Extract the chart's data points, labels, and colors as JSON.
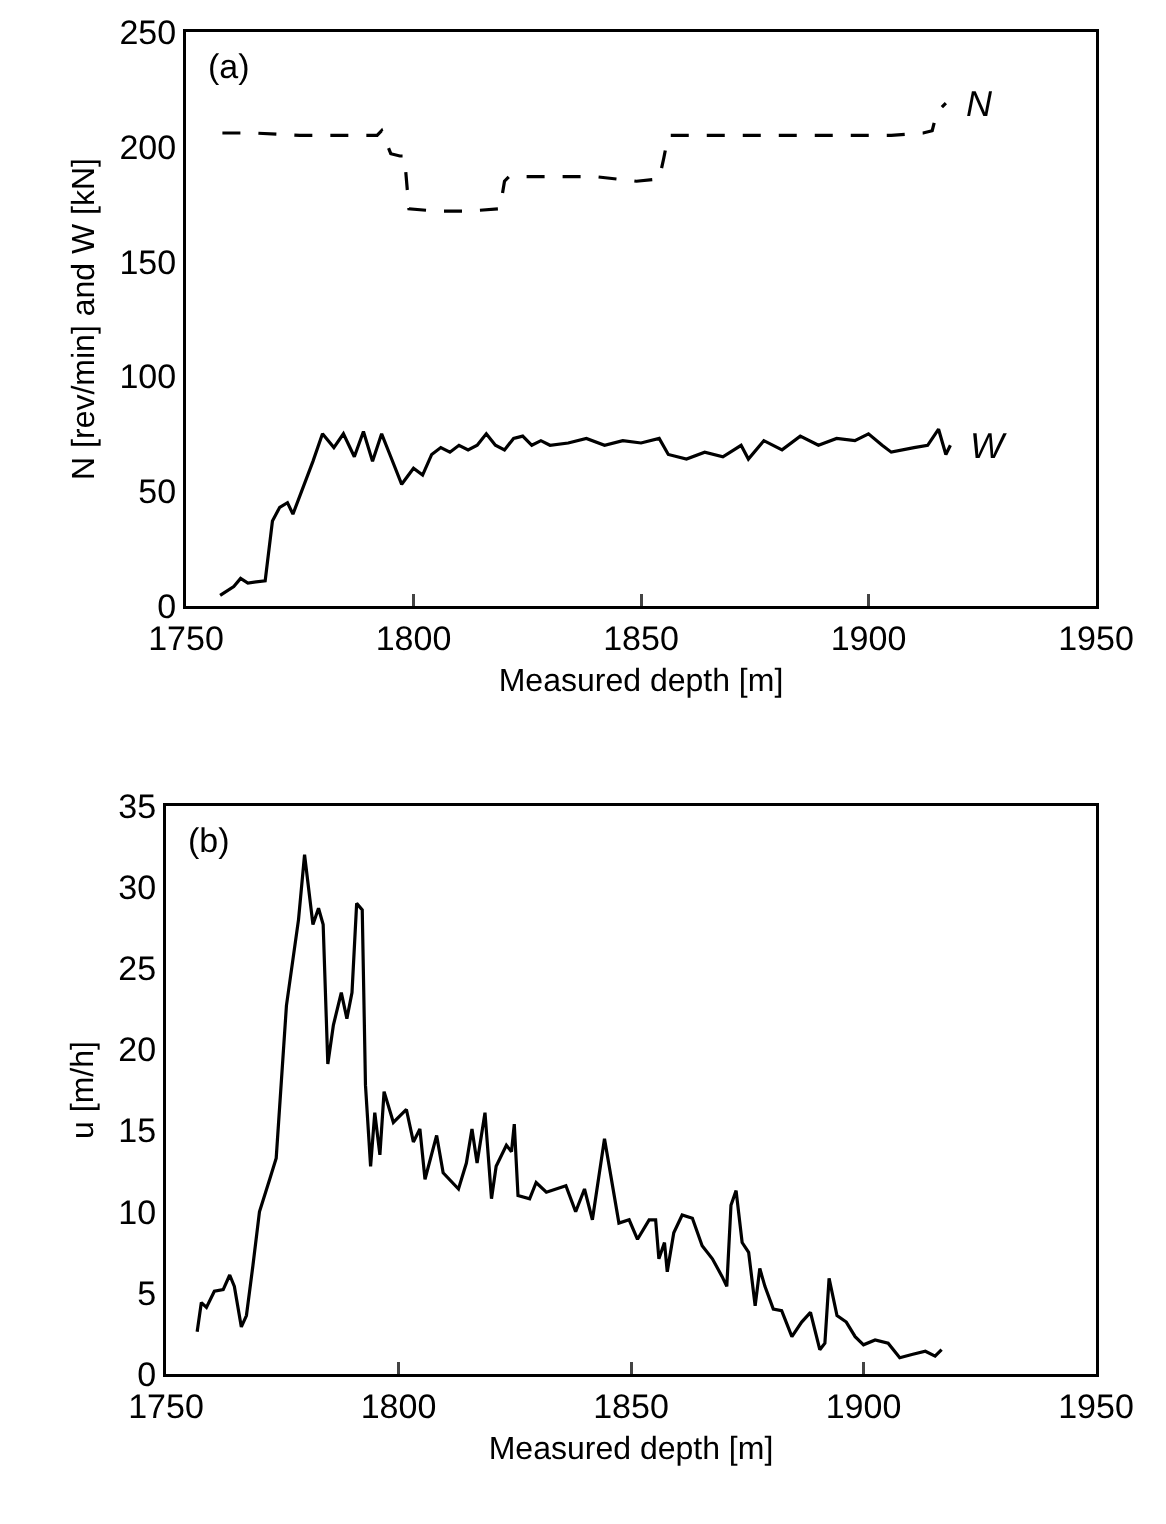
{
  "chart_data": [
    {
      "type": "line",
      "xlabel": "Measured depth [m]",
      "ylabel": "N [rev/min] and W [kN]",
      "annotations": [
        "(a)"
      ],
      "xlim": [
        1750,
        1950
      ],
      "xticks": [
        1750,
        1800,
        1850,
        1900,
        1950
      ],
      "ylim": [
        0,
        250
      ],
      "yticks": [
        0,
        50,
        100,
        150,
        200,
        250
      ],
      "grid": false,
      "legend": false,
      "marker": "none",
      "series": [
        {
          "name": "N",
          "color": "#000000",
          "line_style": "dashed",
          "x": [
            1758,
            1765,
            1775,
            1785,
            1792,
            1793,
            1795,
            1797,
            1798,
            1799,
            1805,
            1812,
            1819,
            1820,
            1821,
            1830,
            1840,
            1849,
            1854,
            1855,
            1856,
            1865,
            1880,
            1895,
            1905,
            1912,
            1914,
            1915,
            1917
          ],
          "values": [
            206,
            206,
            205,
            205,
            205,
            207,
            197,
            196,
            196,
            173,
            172,
            172,
            173,
            185,
            187,
            187,
            187,
            185,
            186,
            195,
            205,
            205,
            205,
            205,
            205,
            206,
            207,
            215,
            219
          ]
        },
        {
          "name": "W",
          "color": "#000000",
          "line_style": "solid",
          "x": [
            1757.5,
            1760.5,
            1762,
            1763.6,
            1767.4,
            1769,
            1770.6,
            1772.3,
            1773.5,
            1777.9,
            1780,
            1782.5,
            1784.6,
            1787,
            1789,
            1791,
            1793,
            1795,
            1797.4,
            1800,
            1802,
            1804,
            1806,
            1808,
            1810,
            1812,
            1814,
            1816,
            1818,
            1820,
            1822,
            1824,
            1826,
            1828,
            1830,
            1834,
            1838,
            1842,
            1846,
            1850,
            1854,
            1856,
            1860,
            1864,
            1868,
            1872,
            1873.6,
            1877,
            1881,
            1885,
            1889,
            1893,
            1897,
            1900,
            1903,
            1905,
            1910,
            1913,
            1915.4,
            1917,
            1918
          ],
          "values": [
            4.6,
            8.5,
            12,
            10,
            11,
            37,
            43,
            45,
            40,
            63,
            75,
            69,
            75,
            65,
            76,
            63,
            75,
            65,
            53,
            60,
            57,
            66,
            69,
            67,
            70,
            68,
            70,
            75,
            70,
            68,
            73,
            74,
            70,
            72,
            70,
            71,
            73,
            70,
            72,
            71,
            73,
            66,
            64,
            67,
            65,
            70,
            64,
            72,
            68,
            74,
            70,
            73,
            72,
            75,
            70,
            67,
            69,
            70,
            77,
            66,
            70
          ]
        }
      ]
    },
    {
      "type": "line",
      "xlabel": "Measured depth [m]",
      "ylabel": "u [m/h]",
      "annotations": [
        "(b)"
      ],
      "xlim": [
        1750,
        1950
      ],
      "xticks": [
        1750,
        1800,
        1850,
        1900,
        1950
      ],
      "ylim": [
        0,
        35
      ],
      "yticks": [
        0,
        5,
        10,
        15,
        20,
        25,
        30,
        35
      ],
      "grid": false,
      "legend": false,
      "marker": "none",
      "series": [
        {
          "color": "#000000",
          "line_style": "solid",
          "x": [
            1756.7,
            1757.6,
            1758.7,
            1760.4,
            1762.3,
            1763.7,
            1764.7,
            1766.2,
            1767.3,
            1768.7,
            1770.1,
            1772.3,
            1773.7,
            1775.9,
            1778.5,
            1779.8,
            1781.6,
            1782.8,
            1783.8,
            1784.8,
            1786,
            1787.7,
            1788.9,
            1790,
            1791,
            1792.2,
            1792.9,
            1794,
            1794.9,
            1796,
            1796.9,
            1798.9,
            1801.7,
            1803.2,
            1804.6,
            1805.7,
            1808.2,
            1809.6,
            1812.9,
            1814.6,
            1815.8,
            1816.9,
            1818.6,
            1820,
            1821,
            1823.2,
            1824.3,
            1824.9,
            1825.7,
            1828.2,
            1829.6,
            1831.8,
            1836,
            1838.1,
            1840,
            1841.7,
            1844.3,
            1847.4,
            1849.6,
            1851.4,
            1853.9,
            1855.3,
            1856,
            1857.2,
            1857.8,
            1859.2,
            1861,
            1863.2,
            1865.3,
            1867.5,
            1869.6,
            1870.6,
            1871.5,
            1872.6,
            1873.9,
            1875.3,
            1876.7,
            1877.7,
            1878.8,
            1880.6,
            1882.4,
            1884.6,
            1886.7,
            1888.6,
            1890.6,
            1891.7,
            1892.6,
            1894.3,
            1896.3,
            1898.2,
            1900,
            1902.5,
            1905.3,
            1907.8,
            1910.4,
            1913.3,
            1915.4,
            1916.8
          ],
          "values": [
            2.6,
            4.4,
            4.1,
            5.1,
            5.2,
            6.1,
            5.4,
            2.9,
            3.6,
            6.7,
            10,
            12,
            13.3,
            22.7,
            28,
            32,
            27.7,
            28.7,
            27.7,
            19.1,
            21.5,
            23.5,
            21.9,
            23.5,
            29,
            28.6,
            17.8,
            12.8,
            16.1,
            13.5,
            17.4,
            15.5,
            16.3,
            14.3,
            15.1,
            12,
            14.7,
            12.4,
            11.4,
            13,
            15.1,
            13,
            16.1,
            10.8,
            12.8,
            14.1,
            13.7,
            15.4,
            11,
            10.8,
            11.8,
            11.2,
            11.6,
            10,
            11.4,
            9.5,
            14.5,
            9.3,
            9.5,
            8.3,
            9.5,
            9.5,
            7.1,
            8.1,
            6.3,
            8.7,
            9.8,
            9.6,
            7.9,
            7.1,
            6,
            5.4,
            10.4,
            11.3,
            8.1,
            7.5,
            4.2,
            6.5,
            5.4,
            4,
            3.9,
            2.3,
            3.2,
            3.8,
            1.5,
            1.9,
            5.9,
            3.6,
            3.2,
            2.3,
            1.8,
            2.1,
            1.9,
            1,
            1.2,
            1.4,
            1.1,
            1.5
          ]
        }
      ]
    }
  ]
}
